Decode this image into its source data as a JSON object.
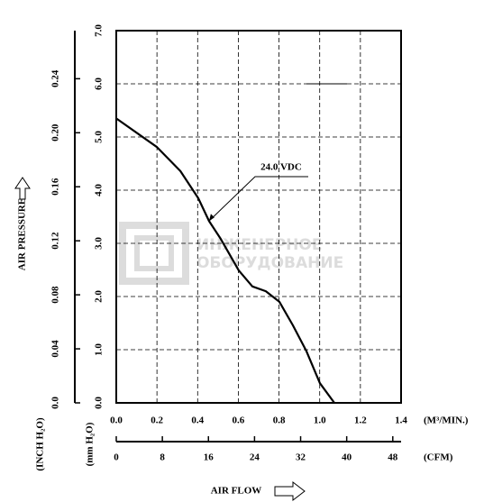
{
  "chart_data": {
    "type": "line",
    "x": [
      0,
      0.2,
      0.315,
      0.403,
      0.456,
      0.514,
      0.602,
      0.669,
      0.735,
      0.802,
      0.868,
      0.935,
      1.001,
      1.072
    ],
    "series": [
      {
        "name": "24.0 VDC",
        "color": "#000000",
        "values": [
          5.35,
          4.81,
          4.36,
          3.85,
          3.42,
          3.08,
          2.49,
          2.19,
          2.1,
          1.9,
          1.46,
          0.97,
          0.37,
          0
        ]
      }
    ],
    "xlim": [
      0,
      1.4
    ],
    "xticks": [
      {
        "value": 0,
        "label": "0.0"
      },
      0.2,
      0.4,
      0.6,
      0.8,
      {
        "value": 1,
        "label": "1.0"
      },
      1.2,
      1.4
    ],
    "x2lim": [
      0,
      49.44
    ],
    "x2ticks": [
      0,
      8,
      16,
      24,
      32,
      40,
      48
    ],
    "ylim": [
      0,
      7
    ],
    "yticks": [
      {
        "value": 0,
        "label": "0.0"
      },
      {
        "value": 1,
        "label": "1.0"
      },
      {
        "value": 2,
        "label": "2.0"
      },
      {
        "value": 3,
        "label": "3.0"
      },
      {
        "value": 4,
        "label": "4.0"
      },
      {
        "value": 5,
        "label": "5.0"
      },
      {
        "value": 6,
        "label": "6.0"
      },
      {
        "value": 7,
        "label": "7.0"
      }
    ],
    "y2lim": [
      0,
      0.2756
    ],
    "y2ticks": [
      {
        "value": 0,
        "label": "0.0"
      },
      0.04,
      0.08,
      0.12,
      0.16,
      {
        "value": 0.2,
        "label": "0.20"
      },
      0.24
    ],
    "grid": true,
    "xlabel": "AIR FLOW",
    "xunit": "(M³/MIN.)",
    "x2unit": "(CFM)",
    "ylabel": "AIR PRESSURE",
    "yunit": "(mm H₂O)",
    "y2unit": "(INCH H₂O)",
    "watermark": [
      "ИНЖЕНЕРНОЕ",
      "ОБОРУДОВАНИЕ"
    ]
  }
}
